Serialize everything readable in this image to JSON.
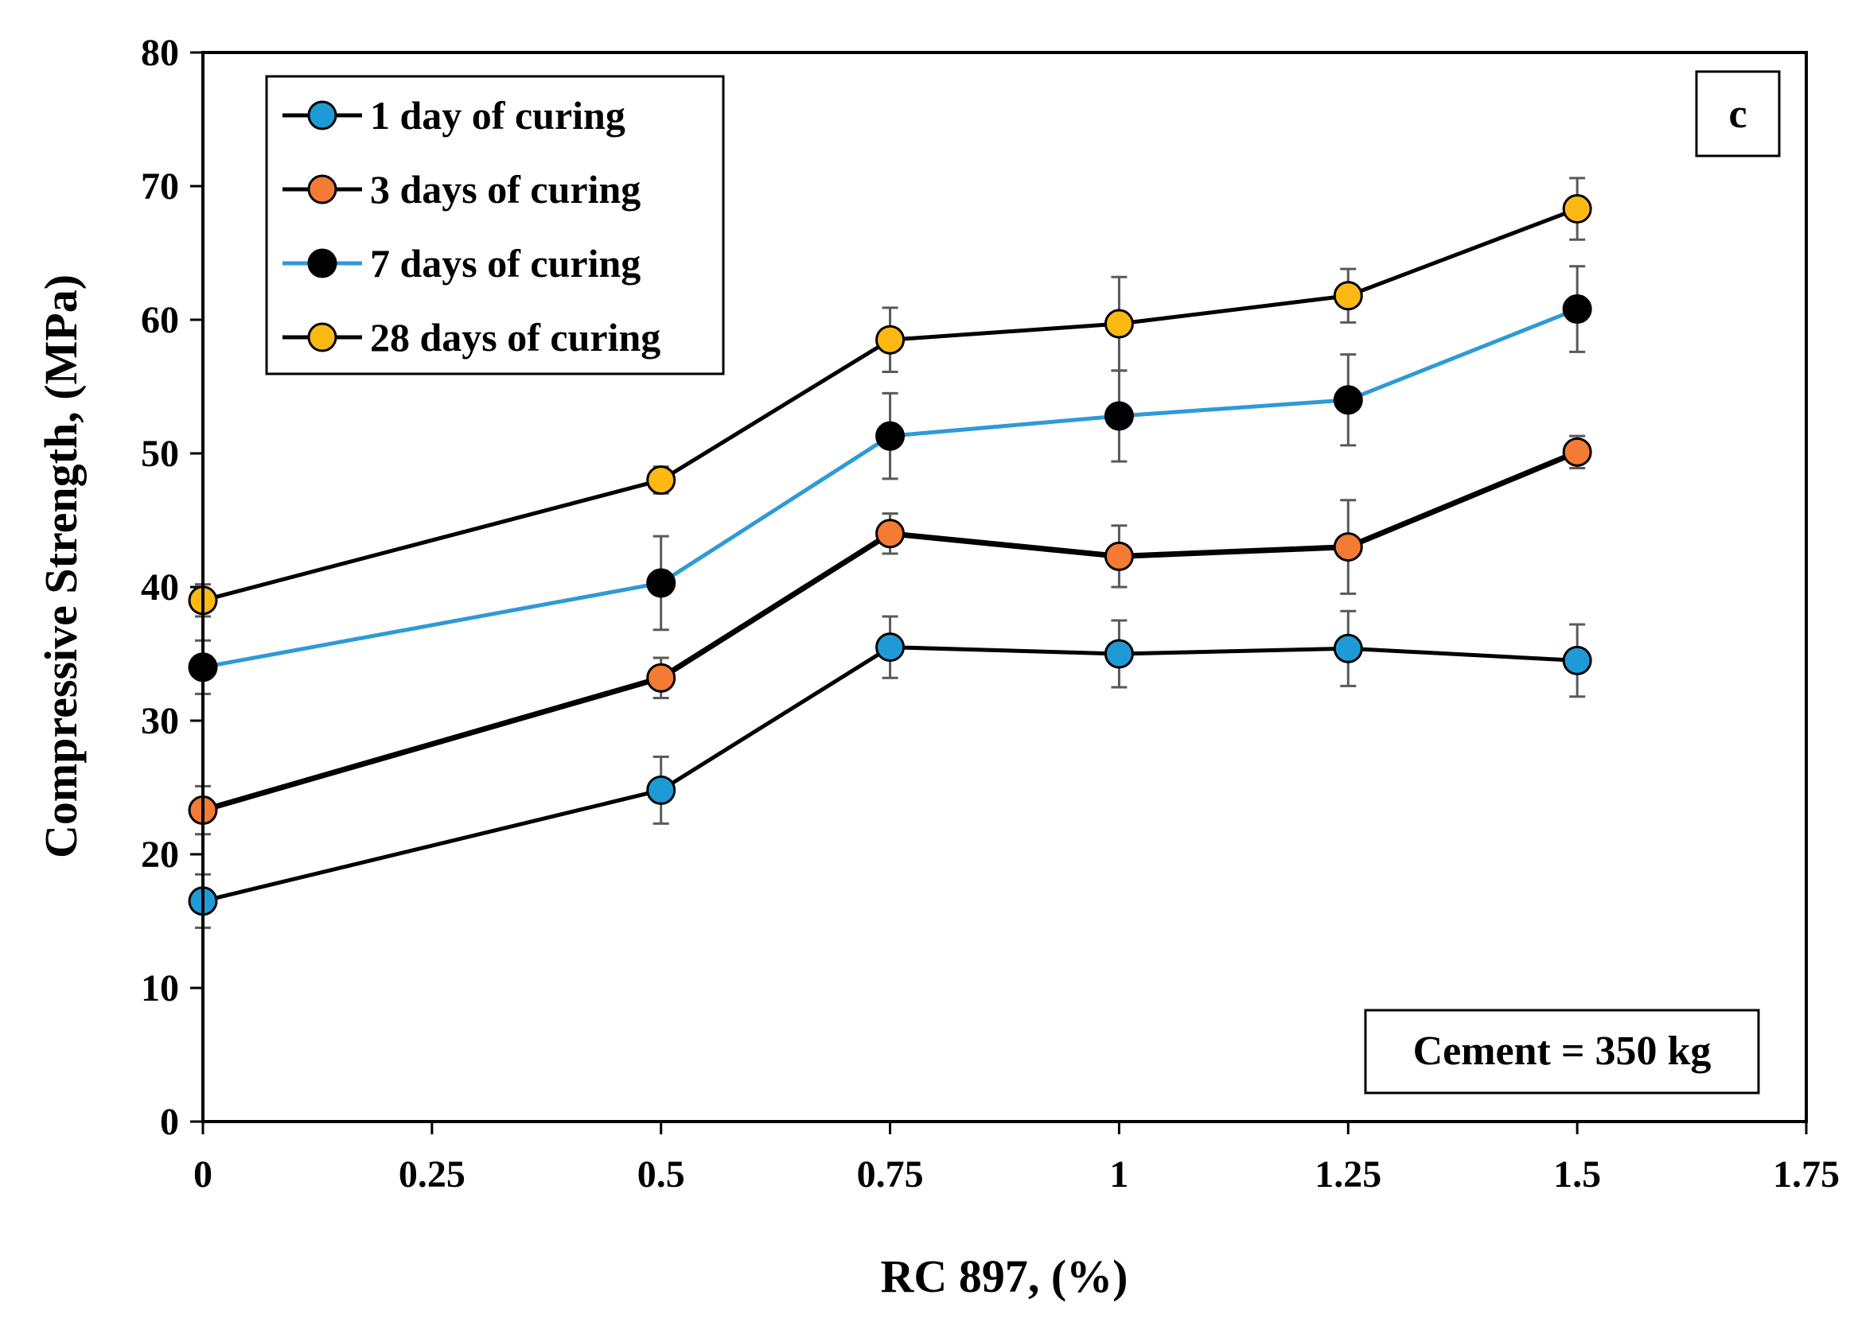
{
  "chart_data": {
    "type": "line",
    "title": "",
    "xlabel": "RC 897, (%)",
    "ylabel": "Compressive  Strength, (MPa)",
    "xlim": [
      0,
      1.75
    ],
    "ylim": [
      0,
      80
    ],
    "x_ticks": [
      0,
      0.25,
      0.5,
      0.75,
      1,
      1.25,
      1.5,
      1.75
    ],
    "x_tick_labels": [
      "0",
      "0.25",
      "0.5",
      "0.75",
      "1",
      "1.25",
      "1.5",
      "1.75"
    ],
    "y_ticks": [
      0,
      10,
      20,
      30,
      40,
      50,
      60,
      70,
      80
    ],
    "y_tick_labels": [
      "0",
      "10",
      "20",
      "30",
      "40",
      "50",
      "60",
      "70",
      "80"
    ],
    "grid": false,
    "legend_position": "top-left",
    "panel_label": "c",
    "annotation": "Cement = 350 kg",
    "x": [
      0,
      0.5,
      0.75,
      1,
      1.25,
      1.5
    ],
    "series": [
      {
        "name": "1 day of curing",
        "line_color": "#000000",
        "marker_color": "#1F9AD6",
        "values": [
          16.5,
          24.8,
          35.5,
          35.0,
          35.4,
          34.5
        ],
        "error": [
          2.0,
          2.5,
          2.3,
          2.5,
          2.8,
          2.7
        ]
      },
      {
        "name": "3 days of curing",
        "line_color": "#000000",
        "marker_color": "#F47B33",
        "values": [
          23.3,
          33.2,
          44.0,
          42.3,
          43.0,
          50.1
        ],
        "error": [
          1.8,
          1.5,
          1.5,
          2.3,
          3.5,
          1.2
        ]
      },
      {
        "name": "7 days of curing",
        "line_color": "#2E9AD6",
        "marker_color": "#000000",
        "values": [
          34.0,
          40.3,
          51.3,
          52.8,
          54.0,
          60.8
        ],
        "error": [
          2.0,
          3.5,
          3.2,
          3.4,
          3.4,
          3.2
        ]
      },
      {
        "name": "28 days of curing",
        "line_color": "#000000",
        "marker_color": "#FDB913",
        "values": [
          39.0,
          48.0,
          58.5,
          59.7,
          61.8,
          68.3
        ],
        "error": [
          1.2,
          1.0,
          2.4,
          3.5,
          2.0,
          2.3
        ]
      }
    ]
  }
}
